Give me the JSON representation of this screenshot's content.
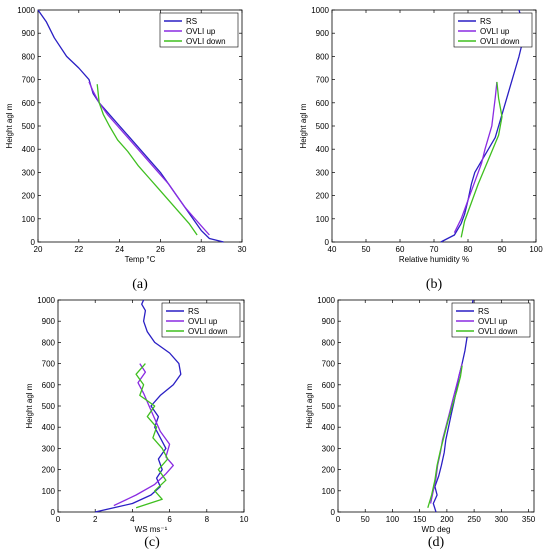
{
  "chart_data": [
    {
      "type": "line",
      "panel_label": "(a)",
      "xlabel": "Temp °C",
      "ylabel": "Height agl m",
      "xlim": [
        20,
        30
      ],
      "ylim": [
        0,
        1000
      ],
      "xticks": [
        "20",
        "22",
        "24",
        "26",
        "28",
        "30"
      ],
      "yticks": [
        "0",
        "100",
        "200",
        "300",
        "400",
        "500",
        "600",
        "700",
        "800",
        "900",
        "1000"
      ],
      "legend_position": "top-right",
      "series": [
        {
          "name": "RS",
          "color": "#2a1fc4",
          "x": [
            29.1,
            28.4,
            28.0,
            27.6,
            27.2,
            26.8,
            26.4,
            26.0,
            25.5,
            25.0,
            24.5,
            24.0,
            23.5,
            23.0,
            22.7,
            22.5,
            22.0,
            21.4,
            20.8,
            20.4,
            20.0
          ],
          "y": [
            0,
            15,
            50,
            100,
            150,
            200,
            250,
            300,
            350,
            400,
            450,
            500,
            550,
            600,
            640,
            700,
            750,
            800,
            880,
            950,
            1000
          ]
        },
        {
          "name": "OVLI up",
          "color": "#8a2be2",
          "x": [
            28.4,
            28.0,
            27.6,
            27.2,
            26.8,
            26.4,
            25.9,
            25.4,
            24.9,
            24.4,
            23.9,
            23.4,
            23.0,
            22.7,
            22.5
          ],
          "y": [
            30,
            70,
            110,
            150,
            200,
            250,
            300,
            350,
            400,
            450,
            500,
            550,
            600,
            650,
            690
          ]
        },
        {
          "name": "OVLI down",
          "color": "#3fbf1f",
          "x": [
            27.8,
            27.4,
            26.9,
            26.4,
            25.9,
            25.4,
            24.9,
            24.4,
            23.9,
            23.5,
            23.2,
            23.0,
            22.9
          ],
          "y": [
            30,
            80,
            130,
            180,
            230,
            280,
            330,
            390,
            440,
            500,
            550,
            600,
            680
          ]
        }
      ]
    },
    {
      "type": "line",
      "panel_label": "(b)",
      "xlabel": "Relative humidity %",
      "ylabel": "Height agl m",
      "xlim": [
        40,
        100
      ],
      "ylim": [
        0,
        1000
      ],
      "xticks": [
        "40",
        "50",
        "60",
        "70",
        "80",
        "90",
        "100"
      ],
      "yticks": [
        "0",
        "100",
        "200",
        "300",
        "400",
        "500",
        "600",
        "700",
        "800",
        "900",
        "1000"
      ],
      "legend_position": "top-right",
      "series": [
        {
          "name": "RS",
          "color": "#2a1fc4",
          "x": [
            72,
            76,
            78,
            79,
            80,
            81,
            82,
            84,
            86,
            88,
            89,
            90,
            91,
            92,
            93,
            94,
            95,
            96,
            97,
            96,
            95
          ],
          "y": [
            0,
            30,
            80,
            120,
            180,
            250,
            300,
            350,
            400,
            450,
            500,
            550,
            600,
            650,
            700,
            750,
            800,
            860,
            900,
            950,
            1000
          ]
        },
        {
          "name": "OVLI up",
          "color": "#8a2be2",
          "x": [
            76,
            78,
            80,
            82,
            84,
            85,
            86,
            87,
            87.5,
            88,
            88.5
          ],
          "y": [
            40,
            100,
            180,
            260,
            340,
            400,
            450,
            500,
            560,
            620,
            690
          ]
        },
        {
          "name": "OVLI down",
          "color": "#3fbf1f",
          "x": [
            78,
            79,
            81,
            83,
            85,
            87,
            89,
            90,
            89,
            88.5
          ],
          "y": [
            20,
            90,
            170,
            250,
            320,
            390,
            460,
            540,
            620,
            690
          ]
        }
      ]
    },
    {
      "type": "line",
      "panel_label": "(c)",
      "xlabel": "WS ms⁻¹",
      "ylabel": "Height agl m",
      "xlim": [
        0,
        10
      ],
      "ylim": [
        0,
        1000
      ],
      "xticks": [
        "0",
        "2",
        "4",
        "6",
        "8",
        "10"
      ],
      "yticks": [
        "0",
        "100",
        "200",
        "300",
        "400",
        "500",
        "600",
        "700",
        "800",
        "900",
        "1000"
      ],
      "legend_position": "top-right",
      "series": [
        {
          "name": "RS",
          "color": "#2a1fc4",
          "x": [
            2.0,
            4.0,
            5.0,
            5.5,
            5.3,
            5.6,
            5.4,
            5.8,
            5.5,
            5.2,
            5.4,
            5.0,
            5.5,
            6.2,
            6.6,
            6.5,
            6.0,
            5.2,
            4.8,
            4.6,
            4.7,
            4.5,
            4.6
          ],
          "y": [
            0,
            40,
            80,
            120,
            160,
            200,
            250,
            300,
            350,
            400,
            450,
            500,
            550,
            600,
            650,
            700,
            750,
            800,
            850,
            900,
            950,
            980,
            1000
          ]
        },
        {
          "name": "OVLI up",
          "color": "#8a2be2",
          "x": [
            3.0,
            4.2,
            5.2,
            5.8,
            6.2,
            5.8,
            6.0,
            5.5,
            5.2,
            4.9,
            4.6,
            4.3,
            4.7,
            4.4
          ],
          "y": [
            30,
            80,
            130,
            180,
            220,
            260,
            320,
            380,
            440,
            500,
            560,
            610,
            660,
            700
          ]
        },
        {
          "name": "OVLI down",
          "color": "#3fbf1f",
          "x": [
            4.2,
            5.6,
            5.2,
            5.8,
            5.4,
            5.9,
            5.6,
            5.1,
            5.3,
            4.8,
            5.2,
            4.4,
            4.6,
            4.2,
            4.7
          ],
          "y": [
            20,
            60,
            100,
            150,
            200,
            250,
            300,
            350,
            400,
            450,
            500,
            550,
            600,
            650,
            700
          ]
        }
      ]
    },
    {
      "type": "line",
      "panel_label": "(d)",
      "xlabel": "WD deg",
      "ylabel": "Height agl m",
      "xlim": [
        0,
        360
      ],
      "ylim": [
        0,
        1000
      ],
      "xticks": [
        "0",
        "50",
        "100",
        "150",
        "200",
        "250",
        "300",
        "350"
      ],
      "yticks": [
        "0",
        "100",
        "200",
        "300",
        "400",
        "500",
        "600",
        "700",
        "800",
        "900",
        "1000"
      ],
      "legend_position": "top-right",
      "series": [
        {
          "name": "RS",
          "color": "#2a1fc4",
          "x": [
            180,
            175,
            182,
            178,
            185,
            190,
            195,
            198,
            203,
            208,
            213,
            218,
            222,
            228,
            233,
            238,
            243,
            248
          ],
          "y": [
            0,
            40,
            80,
            120,
            170,
            220,
            280,
            340,
            400,
            460,
            520,
            580,
            640,
            700,
            760,
            840,
            920,
            1000
          ]
        },
        {
          "name": "OVLI up",
          "color": "#8a2be2",
          "x": [
            170,
            175,
            180,
            183,
            188,
            192,
            198,
            204,
            210,
            216,
            222,
            228
          ],
          "y": [
            40,
            100,
            160,
            220,
            280,
            340,
            400,
            460,
            520,
            580,
            640,
            700
          ]
        },
        {
          "name": "OVLI down",
          "color": "#3fbf1f",
          "x": [
            165,
            172,
            178,
            182,
            188,
            195,
            202,
            210,
            218,
            225,
            228
          ],
          "y": [
            20,
            80,
            150,
            220,
            290,
            360,
            430,
            500,
            570,
            640,
            690
          ]
        }
      ]
    }
  ]
}
